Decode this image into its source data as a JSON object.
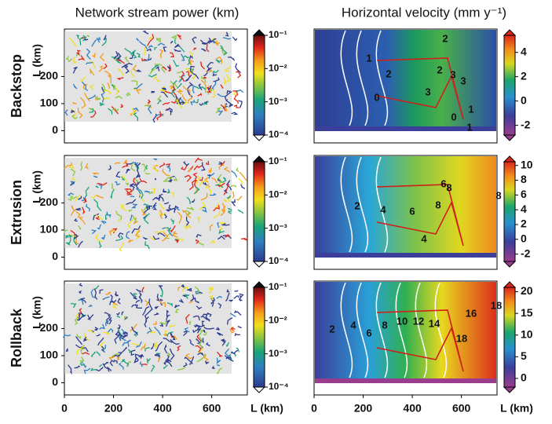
{
  "column_titles": [
    "Network stream power (km)",
    "Horizontal velocity (mm y⁻¹)"
  ],
  "axis_label": "L (km)",
  "xlim": [
    0,
    745
  ],
  "xticks": [
    0,
    200,
    400,
    600
  ],
  "ylim": [
    -45,
    375
  ],
  "yticks": [
    0,
    100,
    200
  ],
  "stream_colorbar": {
    "scale": "log",
    "lim": [
      0.0001,
      0.1
    ],
    "ticks": [
      {
        "value": 0.1,
        "label": "10⁻¹"
      },
      {
        "value": 0.01,
        "label": "10⁻²"
      },
      {
        "value": 0.001,
        "label": "10⁻³"
      },
      {
        "value": 0.0001,
        "label": "10⁻⁴"
      }
    ]
  },
  "rows": [
    {
      "name": "Backstop",
      "velocity_colorbar": {
        "lim": [
          -2.8,
          5.4
        ],
        "ticks": [
          -2,
          0,
          2,
          4
        ]
      },
      "contour_labels": [
        1,
        2,
        2,
        3,
        3,
        3,
        2,
        1,
        0,
        0,
        1
      ]
    },
    {
      "name": "Extrusion",
      "velocity_colorbar": {
        "lim": [
          -3,
          10.5
        ],
        "ticks": [
          -2,
          0,
          2,
          4,
          6,
          8,
          10
        ]
      },
      "contour_labels": [
        2,
        4,
        6,
        6,
        8,
        8,
        8,
        4
      ]
    },
    {
      "name": "Rollback",
      "velocity_colorbar": {
        "lim": [
          -2,
          21
        ],
        "ticks": [
          0,
          5,
          10,
          15,
          20
        ]
      },
      "contour_labels": [
        2,
        4,
        6,
        8,
        10,
        12,
        14,
        16,
        18,
        18
      ]
    }
  ]
}
